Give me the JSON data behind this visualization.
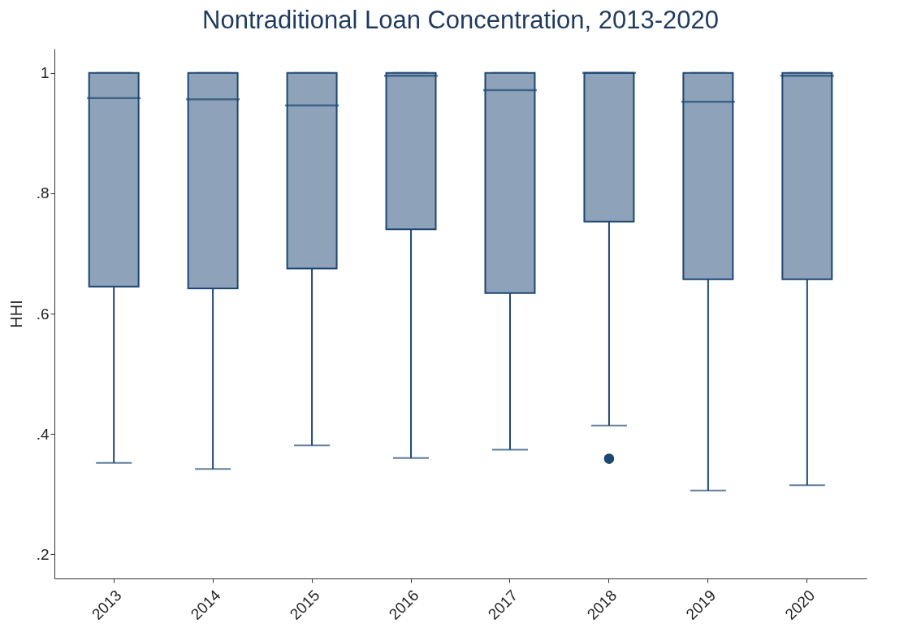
{
  "chart_data": {
    "type": "box",
    "title": "Nontraditional Loan Concentration, 2013-2020",
    "ylabel": "HHI",
    "categories": [
      "2013",
      "2014",
      "2015",
      "2016",
      "2017",
      "2018",
      "2019",
      "2020"
    ],
    "color": "#8ea3b9",
    "boxes": [
      {
        "low": 0.352,
        "q1": 0.645,
        "median": 0.958,
        "q3": 1,
        "high": 1
      },
      {
        "low": 0.342,
        "q1": 0.642,
        "median": 0.956,
        "q3": 1,
        "high": 1
      },
      {
        "low": 0.381,
        "q1": 0.675,
        "median": 0.946,
        "q3": 1,
        "high": 1
      },
      {
        "low": 0.36,
        "q1": 0.74,
        "median": 0.995,
        "q3": 1,
        "high": 1
      },
      {
        "low": 0.374,
        "q1": 0.634,
        "median": 0.971,
        "q3": 1,
        "high": 1
      },
      {
        "low": 0.414,
        "q1": 0.753,
        "median": 1,
        "q3": 1,
        "high": 1,
        "outliers": [
          0.359
        ]
      },
      {
        "low": 0.306,
        "q1": 0.657,
        "median": 0.952,
        "q3": 1,
        "high": 1
      },
      {
        "low": 0.315,
        "q1": 0.657,
        "median": 0.995,
        "q3": 1,
        "high": 1
      }
    ],
    "ylim": [
      0.16,
      1.04
    ],
    "yticks": [
      {
        "value": 0.2,
        "label": ".2"
      },
      {
        "value": 0.4,
        "label": ".4"
      },
      {
        "value": 0.6,
        "label": ".6"
      },
      {
        "value": 0.8,
        "label": ".8"
      },
      1
    ],
    "grid": false
  }
}
